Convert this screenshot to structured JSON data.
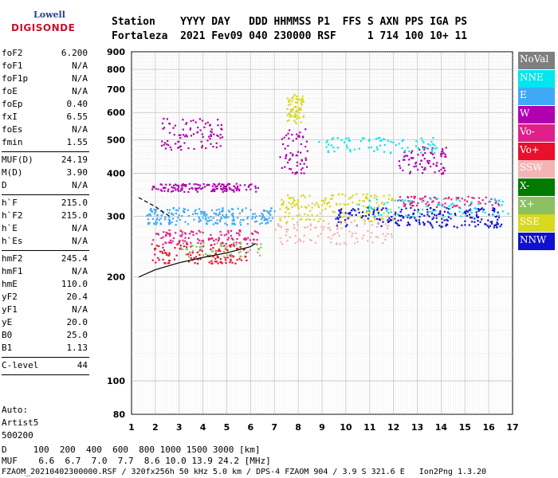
{
  "logo": {
    "line1": "Lowell",
    "line2": "DIGISONDE"
  },
  "header": {
    "labels": "Station    YYYY DAY   DDD HHMMSS P1  FFS S AXN PPS IGA PS",
    "values": "Fortaleza  2021 Fev09 040 230000 RSF     1 714 100 10+ 11"
  },
  "params": [
    {
      "name": "foF2",
      "value": "6.200"
    },
    {
      "name": "foF1",
      "value": "N/A"
    },
    {
      "name": "foF1p",
      "value": "N/A"
    },
    {
      "name": "foE",
      "value": "N/A"
    },
    {
      "name": "foEp",
      "value": "0.40"
    },
    {
      "name": "fxI",
      "value": "6.55"
    },
    {
      "name": "foEs",
      "value": "N/A"
    },
    {
      "name": "fmin",
      "value": "1.55"
    },
    {
      "name": "MUF(D)",
      "value": "24.19"
    },
    {
      "name": "M(D)",
      "value": "3.90"
    },
    {
      "name": "D",
      "value": "N/A"
    },
    {
      "name": "h`F",
      "value": "215.0"
    },
    {
      "name": "h`F2",
      "value": "215.0"
    },
    {
      "name": "h`E",
      "value": "N/A"
    },
    {
      "name": "h`Es",
      "value": "N/A"
    },
    {
      "name": "hmF2",
      "value": "245.4"
    },
    {
      "name": "hmF1",
      "value": "N/A"
    },
    {
      "name": "hmE",
      "value": "110.0"
    },
    {
      "name": "yF2",
      "value": "20.4"
    },
    {
      "name": "yF1",
      "value": "N/A"
    },
    {
      "name": "yE",
      "value": "20.0"
    },
    {
      "name": "B0",
      "value": "25.0"
    },
    {
      "name": "B1",
      "value": "1.13"
    },
    {
      "name": "C-level",
      "value": "44"
    }
  ],
  "auto": {
    "l1": "Auto:",
    "l2": "Artist5",
    "l3": "500200"
  },
  "legend": [
    {
      "label": "NoVal",
      "color": "#7f7f7f"
    },
    {
      "label": "NNE",
      "color": "#00e5ee"
    },
    {
      "label": "E",
      "color": "#3fa9f5"
    },
    {
      "label": "W",
      "color": "#b000b0"
    },
    {
      "label": "Vo-",
      "color": "#e0208a"
    },
    {
      "label": "Vo+",
      "color": "#e8102a"
    },
    {
      "label": "SSW",
      "color": "#f4b4b4"
    },
    {
      "label": "X-",
      "color": "#007a00"
    },
    {
      "label": "X+",
      "color": "#8cc060"
    },
    {
      "label": "SSE",
      "color": "#d8d820"
    },
    {
      "label": "NNW",
      "color": "#1010d0"
    }
  ],
  "bottom": {
    "d_row": "D     100  200  400  600  800 1000 1500 3000 [km]",
    "muf_row": "MUF    6.6  6.7  7.0  7.7  8.6 10.0 13.9 24.2 [MHz]",
    "file_row": "FZAOM_20210402300000.RSF / 320fx256h 50 kHz 5.0 km / DPS-4 FZAOM 904 / 3.9 S 321.6 E   Ion2Png 1.3.20"
  },
  "chart_data": {
    "type": "scatter",
    "xlim": [
      1,
      17
    ],
    "ylim": [
      80,
      900
    ],
    "y_scale": "log",
    "x_ticks": [
      1,
      2,
      3,
      4,
      5,
      6,
      7,
      8,
      9,
      10,
      11,
      12,
      13,
      14,
      15,
      16,
      17
    ],
    "y_ticks": [
      80,
      100,
      200,
      300,
      400,
      500,
      600,
      700,
      800,
      900
    ],
    "grid": true,
    "xlabel": "",
    "ylabel": "",
    "traces": [
      {
        "name": "trace-profile",
        "color": "#000000",
        "x": [
          1.3,
          2.0,
          3.0,
          4.0,
          5.0,
          6.0,
          6.2
        ],
        "y": [
          200,
          210,
          220,
          228,
          235,
          245,
          250
        ]
      },
      {
        "name": "trace-dashed",
        "color": "#000000",
        "x": [
          1.3,
          2.0,
          2.6
        ],
        "y": [
          340,
          320,
          300
        ]
      }
    ],
    "clusters": [
      {
        "color": "#b000b0",
        "x": [
          1.8,
          6.3
        ],
        "y": [
          355,
          375
        ],
        "n": 140
      },
      {
        "color": "#b000b0",
        "x": [
          2.2,
          4.8
        ],
        "y": [
          470,
          580
        ],
        "n": 90
      },
      {
        "color": "#b000b0",
        "x": [
          7.2,
          8.4
        ],
        "y": [
          400,
          540
        ],
        "n": 60
      },
      {
        "color": "#b000b0",
        "x": [
          12.2,
          14.2
        ],
        "y": [
          400,
          480
        ],
        "n": 80
      },
      {
        "color": "#3fa9f5",
        "x": [
          1.6,
          7.0
        ],
        "y": [
          285,
          320
        ],
        "n": 220
      },
      {
        "color": "#e8102a",
        "x": [
          1.8,
          5.8
        ],
        "y": [
          220,
          250
        ],
        "n": 120
      },
      {
        "color": "#e0208a",
        "x": [
          1.8,
          6.3
        ],
        "y": [
          250,
          275
        ],
        "n": 120
      },
      {
        "color": "#8cc060",
        "x": [
          3.0,
          6.5
        ],
        "y": [
          230,
          255
        ],
        "n": 60
      },
      {
        "color": "#d8d820",
        "x": [
          7.5,
          8.2
        ],
        "y": [
          560,
          680
        ],
        "n": 70
      },
      {
        "color": "#d8d820",
        "x": [
          7.2,
          12.0
        ],
        "y": [
          290,
          350
        ],
        "n": 180
      },
      {
        "color": "#00e5ee",
        "x": [
          8.8,
          13.8
        ],
        "y": [
          460,
          510
        ],
        "n": 80
      },
      {
        "color": "#1010d0",
        "x": [
          9.5,
          16.5
        ],
        "y": [
          280,
          320
        ],
        "n": 220
      },
      {
        "color": "#f4b4b4",
        "x": [
          7.0,
          12.0
        ],
        "y": [
          250,
          290
        ],
        "n": 100
      },
      {
        "color": "#e0208a",
        "x": [
          12.0,
          16.5
        ],
        "y": [
          320,
          345
        ],
        "n": 80
      },
      {
        "color": "#00e5ee",
        "x": [
          10.5,
          16.8
        ],
        "y": [
          300,
          340
        ],
        "n": 80
      }
    ]
  }
}
